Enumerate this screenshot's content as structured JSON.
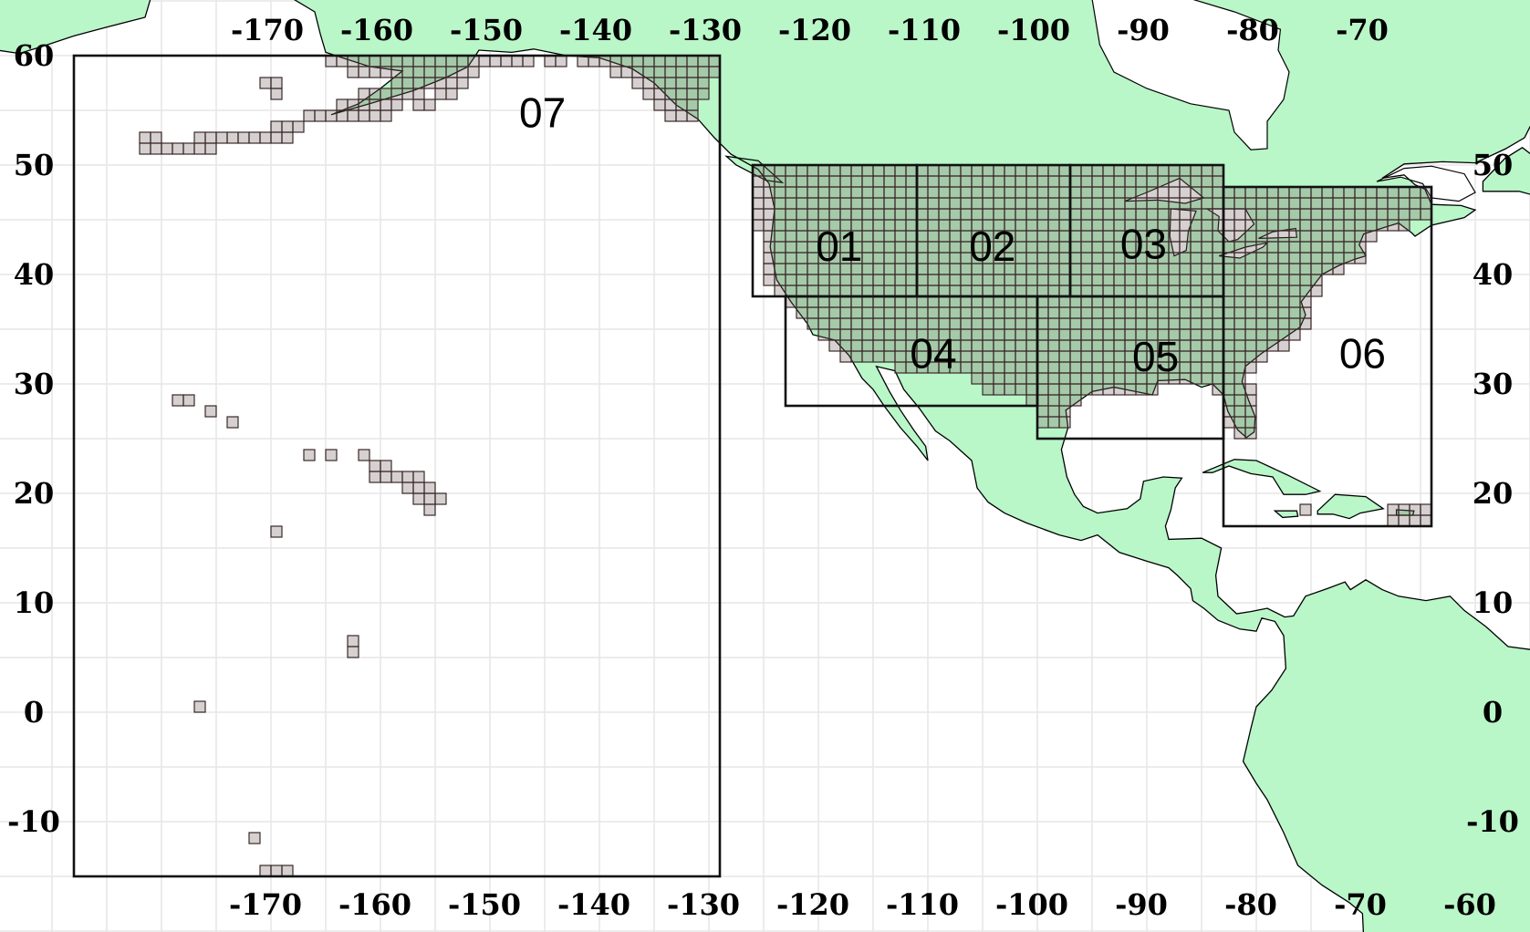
{
  "map": {
    "projection": "equirectangular",
    "extent": {
      "lon": [
        -195,
        -55
      ],
      "lat": [
        -20,
        65
      ]
    },
    "colors": {
      "land": "#b9f6c8",
      "water": "#ffffff",
      "coast": "#000000",
      "grid_cell": "#d3c7c7",
      "grid_cell_border": "#3a2a2a",
      "region_box": "#111111"
    },
    "graticule_step_deg": 5,
    "cell_size_deg": 1,
    "axes": {
      "top": [
        "-170",
        "-160",
        "-150",
        "-140",
        "-130",
        "-120",
        "-110",
        "-100",
        "-90",
        "-80",
        "-70"
      ],
      "bottom": [
        "-170",
        "-160",
        "-150",
        "-140",
        "-130",
        "-120",
        "-110",
        "-100",
        "-90",
        "-80",
        "-70",
        "-60"
      ],
      "left": [
        "60",
        "50",
        "40",
        "30",
        "20",
        "10",
        "0",
        "-10"
      ],
      "right": [
        "50",
        "40",
        "30",
        "20",
        "10",
        "0",
        "-10"
      ]
    },
    "regions": [
      {
        "label": "01",
        "lon": [
          -126,
          -111
        ],
        "lat": [
          38,
          50
        ]
      },
      {
        "label": "02",
        "lon": [
          -111,
          -97
        ],
        "lat": [
          38,
          50
        ]
      },
      {
        "label": "03",
        "lon": [
          -97,
          -83
        ],
        "lat": [
          38,
          50
        ]
      },
      {
        "label": "04",
        "lon": [
          -123,
          -100
        ],
        "lat": [
          28,
          38
        ]
      },
      {
        "label": "05",
        "lon": [
          -100,
          -83
        ],
        "lat": [
          25,
          38
        ]
      },
      {
        "label": "06",
        "lon": [
          -83,
          -64
        ],
        "lat": [
          17,
          48
        ]
      },
      {
        "label": "07",
        "lon": [
          -188,
          -129
        ],
        "lat": [
          -15,
          60
        ]
      }
    ],
    "pacific_cells": [
      {
        "lat": 59,
        "lon_from": -165,
        "lon_to": -147
      },
      {
        "lat": 59,
        "lon_from": -145,
        "lon_to": -144
      },
      {
        "lat": 59,
        "lon_from": -142,
        "lon_to": -130
      },
      {
        "lat": 58,
        "lon_from": -163,
        "lon_to": -152
      },
      {
        "lat": 58,
        "lon_from": -139,
        "lon_to": -130
      },
      {
        "lat": 57,
        "lon_from": -171,
        "lon_to": -170
      },
      {
        "lat": 57,
        "lon_from": -159,
        "lon_to": -153
      },
      {
        "lat": 57,
        "lon_from": -137,
        "lon_to": -131
      },
      {
        "lat": 56,
        "lon_from": -170,
        "lon_to": -170
      },
      {
        "lat": 56,
        "lon_from": -162,
        "lon_to": -157
      },
      {
        "lat": 56,
        "lon_from": -155,
        "lon_to": -154
      },
      {
        "lat": 56,
        "lon_from": -136,
        "lon_to": -131
      },
      {
        "lat": 55,
        "lon_from": -164,
        "lon_to": -159
      },
      {
        "lat": 55,
        "lon_from": -157,
        "lon_to": -156
      },
      {
        "lat": 55,
        "lon_from": -135,
        "lon_to": -132
      },
      {
        "lat": 54,
        "lon_from": -167,
        "lon_to": -160
      },
      {
        "lat": 54,
        "lon_from": -134,
        "lon_to": -132
      },
      {
        "lat": 53,
        "lon_from": -170,
        "lon_to": -168
      },
      {
        "lat": 52,
        "lon_from": -182,
        "lon_to": -181
      },
      {
        "lat": 52,
        "lon_from": -177,
        "lon_to": -169
      },
      {
        "lat": 51,
        "lon_from": -182,
        "lon_to": -176
      },
      {
        "lat": 28,
        "lon_from": -179,
        "lon_to": -178
      },
      {
        "lat": 27,
        "lon_from": -176,
        "lon_to": -176
      },
      {
        "lat": 26,
        "lon_from": -174,
        "lon_to": -174
      },
      {
        "lat": 23,
        "lon_from": -167,
        "lon_to": -167
      },
      {
        "lat": 23,
        "lon_from": -165,
        "lon_to": -165
      },
      {
        "lat": 23,
        "lon_from": -162,
        "lon_to": -162
      },
      {
        "lat": 22,
        "lon_from": -161,
        "lon_to": -160
      },
      {
        "lat": 21,
        "lon_from": -161,
        "lon_to": -157
      },
      {
        "lat": 20,
        "lon_from": -158,
        "lon_to": -156
      },
      {
        "lat": 19,
        "lon_from": -157,
        "lon_to": -155
      },
      {
        "lat": 18,
        "lon_from": -156,
        "lon_to": -156
      },
      {
        "lat": 16,
        "lon_from": -170,
        "lon_to": -170
      },
      {
        "lat": 6,
        "lon_from": -163,
        "lon_to": -163
      },
      {
        "lat": 5,
        "lon_from": -163,
        "lon_to": -163
      },
      {
        "lat": 0,
        "lon_from": -177,
        "lon_to": -177
      },
      {
        "lat": -12,
        "lon_from": -172,
        "lon_to": -172
      },
      {
        "lat": -15,
        "lon_from": -171,
        "lon_to": -169
      },
      {
        "lat": 18,
        "lon_from": -76,
        "lon_to": -76
      },
      {
        "lat": 18,
        "lon_from": -68,
        "lon_to": -65
      },
      {
        "lat": 17,
        "lon_from": -68,
        "lon_to": -65
      }
    ]
  }
}
